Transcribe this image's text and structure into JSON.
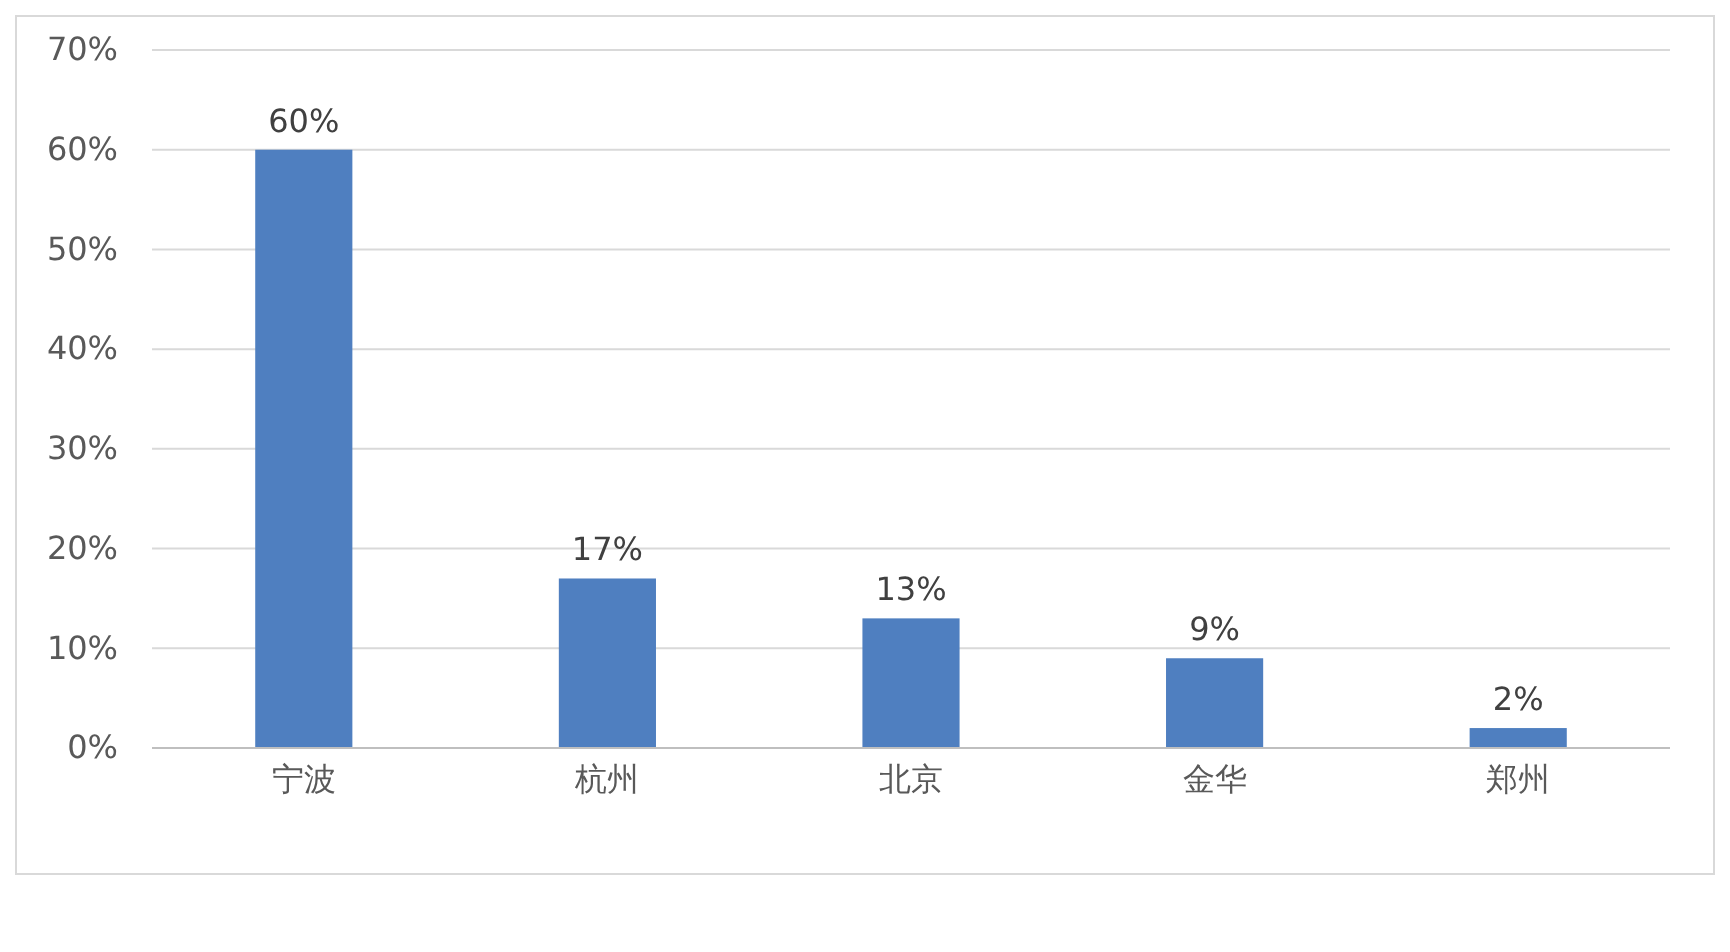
{
  "chart_data": {
    "type": "bar",
    "categories": [
      "宁波",
      "杭州",
      "北京",
      "金华",
      "郑州"
    ],
    "values": [
      60,
      17,
      13,
      9,
      2
    ],
    "value_labels": [
      "60%",
      "17%",
      "13%",
      "9%",
      "2%"
    ],
    "color": "#4f7fc0",
    "ylim": [
      0,
      70
    ],
    "yticks": [
      {
        "value": 0,
        "label": "0%"
      },
      {
        "value": 10,
        "label": "10%"
      },
      {
        "value": 20,
        "label": "20%"
      },
      {
        "value": 30,
        "label": "30%"
      },
      {
        "value": 40,
        "label": "40%"
      },
      {
        "value": 50,
        "label": "50%"
      },
      {
        "value": 60,
        "label": "60%"
      },
      {
        "value": 70,
        "label": "70%"
      }
    ],
    "grid": "y"
  }
}
